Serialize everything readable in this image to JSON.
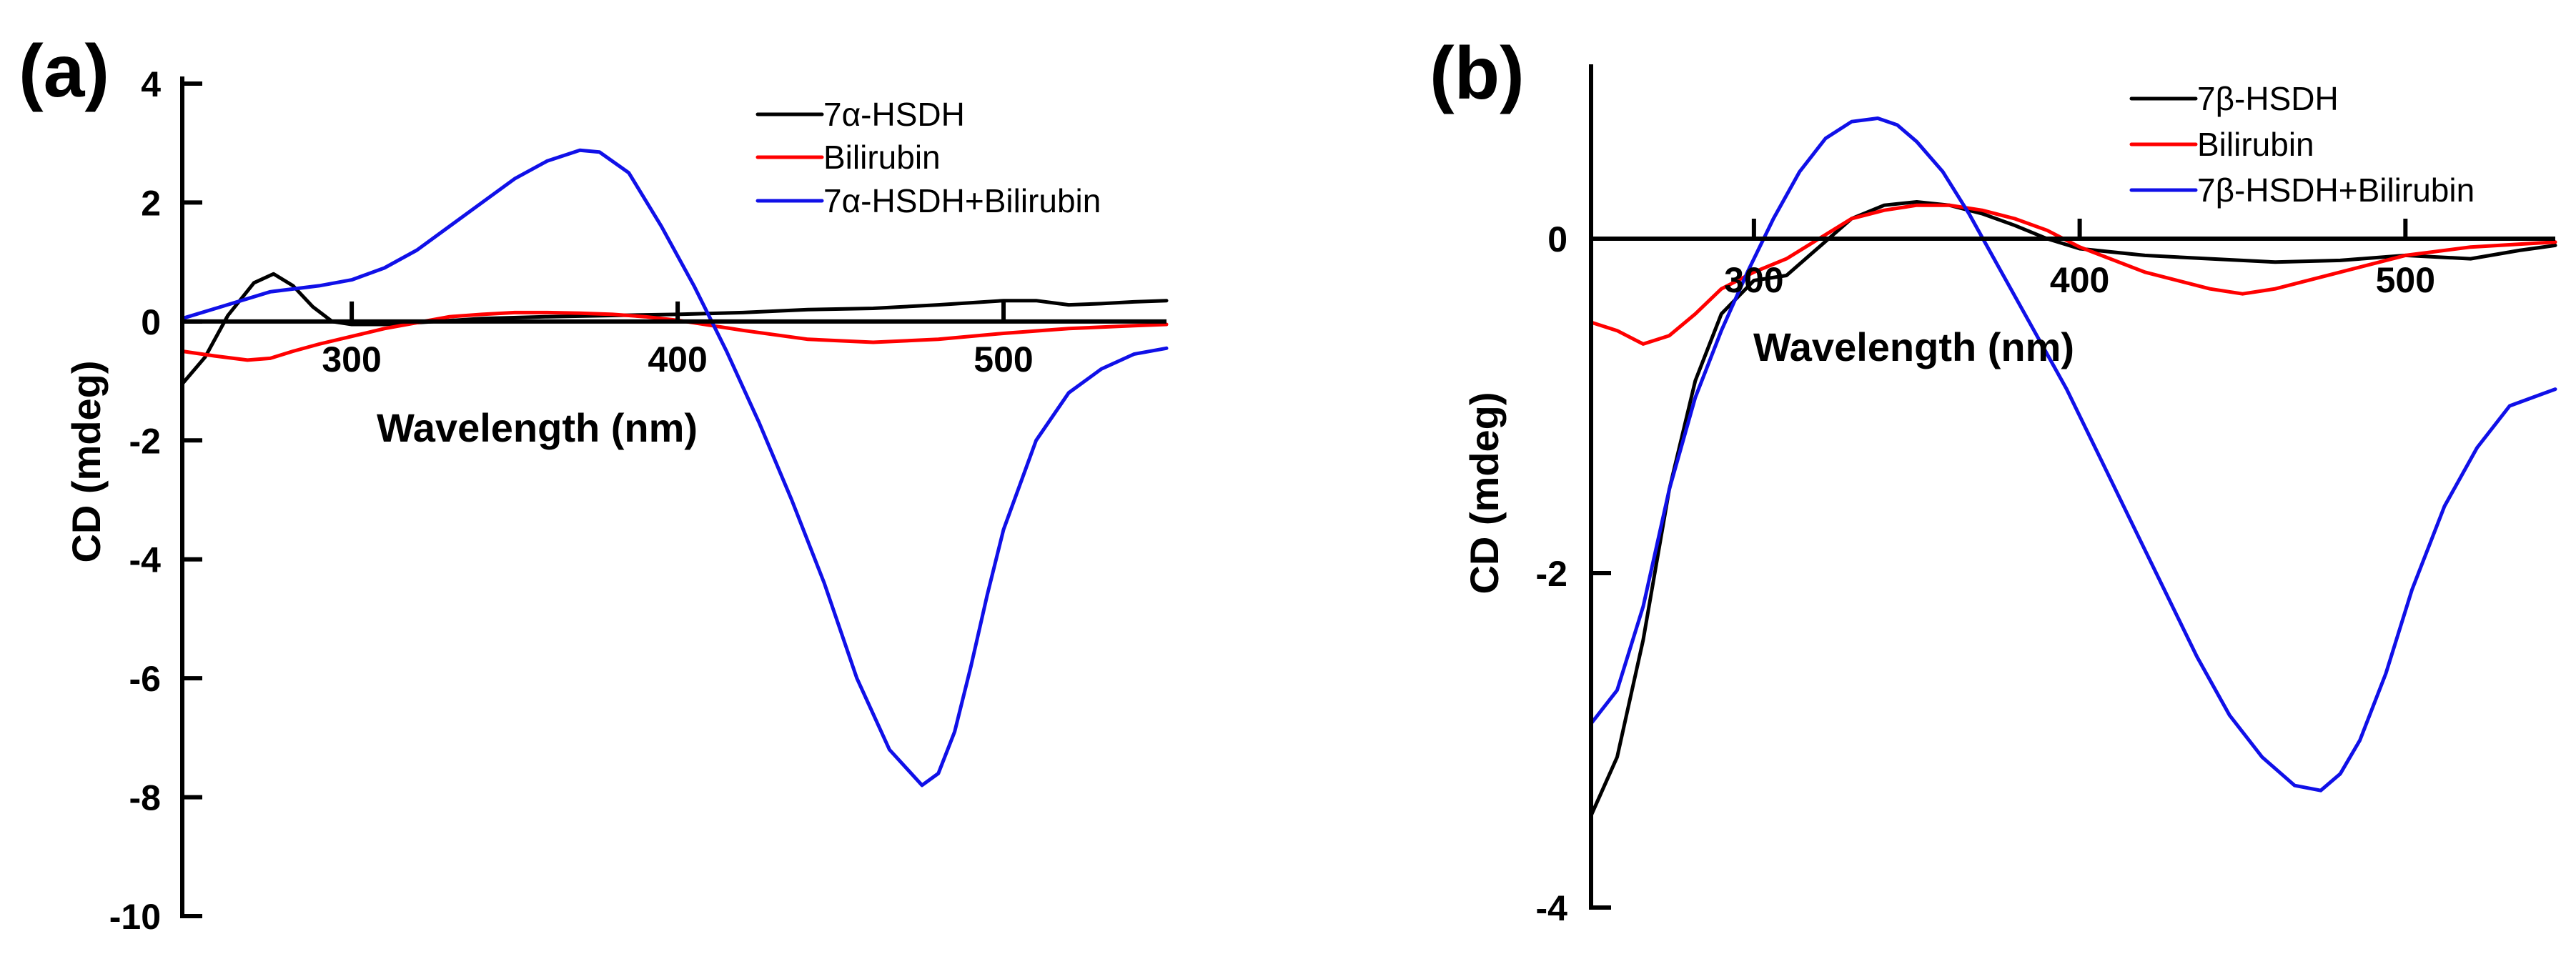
{
  "colors": {
    "black": "#000000",
    "red": "#ff0000",
    "blue": "#1010e8"
  },
  "chart_data": [
    {
      "type": "line",
      "panel_label": "(a)",
      "title": "",
      "xlabel": "Wavelength (nm)",
      "ylabel": "CD (mdeg)",
      "xlim": [
        248,
        550
      ],
      "ylim": [
        -10,
        4
      ],
      "xticks": [
        300,
        400,
        500
      ],
      "xtick_labels": [
        "300",
        "400",
        "500"
      ],
      "yticks": [
        4,
        2,
        0,
        -2,
        -4,
        -6,
        -8,
        -10
      ],
      "ytick_labels": [
        "4",
        "2",
        "0",
        "-2",
        "-4",
        "-6",
        "-8",
        "-10"
      ],
      "legend_position": "top-right",
      "series": [
        {
          "name": "7α-HSDH",
          "color": "#000000",
          "x": [
            248,
            255,
            262,
            270,
            276,
            282,
            288,
            294,
            300,
            310,
            320,
            340,
            360,
            380,
            400,
            420,
            440,
            460,
            480,
            500,
            510,
            520,
            530,
            540,
            550
          ],
          "y": [
            -1.05,
            -0.6,
            0.1,
            0.65,
            0.8,
            0.6,
            0.25,
            0.0,
            -0.05,
            -0.05,
            -0.02,
            0.05,
            0.08,
            0.1,
            0.12,
            0.15,
            0.2,
            0.22,
            0.28,
            0.35,
            0.35,
            0.28,
            0.3,
            0.33,
            0.35
          ]
        },
        {
          "name": "Bilirubin",
          "color": "#ff0000",
          "x": [
            248,
            258,
            268,
            275,
            282,
            290,
            300,
            310,
            320,
            330,
            340,
            350,
            360,
            370,
            380,
            390,
            400,
            420,
            440,
            460,
            480,
            500,
            520,
            540,
            550
          ],
          "y": [
            -0.5,
            -0.58,
            -0.65,
            -0.62,
            -0.5,
            -0.38,
            -0.25,
            -0.12,
            -0.02,
            0.08,
            0.12,
            0.15,
            0.15,
            0.14,
            0.12,
            0.08,
            0.02,
            -0.15,
            -0.3,
            -0.35,
            -0.3,
            -0.2,
            -0.12,
            -0.07,
            -0.05
          ]
        },
        {
          "name": "7α-HSDH+Bilirubin",
          "color": "#1010e8",
          "x": [
            248,
            260,
            275,
            290,
            300,
            310,
            320,
            330,
            340,
            350,
            360,
            370,
            376,
            385,
            395,
            405,
            415,
            425,
            435,
            445,
            455,
            465,
            475,
            480,
            485,
            490,
            495,
            500,
            510,
            520,
            530,
            540,
            550
          ],
          "y": [
            0.05,
            0.25,
            0.5,
            0.6,
            0.7,
            0.9,
            1.2,
            1.6,
            2.0,
            2.4,
            2.7,
            2.88,
            2.85,
            2.5,
            1.6,
            0.6,
            -0.5,
            -1.7,
            -3.0,
            -4.4,
            -6.0,
            -7.2,
            -7.8,
            -7.6,
            -6.9,
            -5.8,
            -4.6,
            -3.5,
            -2.0,
            -1.2,
            -0.8,
            -0.55,
            -0.45
          ]
        }
      ]
    },
    {
      "type": "line",
      "panel_label": "(b)",
      "title": "",
      "xlabel": "Wavelength (nm)",
      "ylabel": "CD (mdeg)",
      "xlim": [
        250,
        546
      ],
      "ylim": [
        -4,
        1
      ],
      "xticks": [
        300,
        400,
        500
      ],
      "xtick_labels": [
        "300",
        "400",
        "500"
      ],
      "yticks": [
        0,
        -2,
        -4
      ],
      "ytick_labels": [
        "0",
        "-2",
        "-4"
      ],
      "legend_position": "top-right",
      "series": [
        {
          "name": "7β-HSDH",
          "color": "#000000",
          "x": [
            250,
            258,
            266,
            274,
            282,
            290,
            300,
            310,
            320,
            330,
            340,
            350,
            360,
            370,
            380,
            390,
            400,
            420,
            440,
            460,
            480,
            500,
            520,
            535,
            546
          ],
          "y": [
            -3.45,
            -3.1,
            -2.4,
            -1.5,
            -0.85,
            -0.45,
            -0.25,
            -0.22,
            -0.05,
            0.12,
            0.2,
            0.22,
            0.2,
            0.15,
            0.08,
            0.0,
            -0.06,
            -0.1,
            -0.12,
            -0.14,
            -0.13,
            -0.1,
            -0.12,
            -0.07,
            -0.04
          ]
        },
        {
          "name": "Bilirubin",
          "color": "#ff0000",
          "x": [
            250,
            258,
            266,
            274,
            282,
            290,
            300,
            310,
            320,
            330,
            340,
            350,
            360,
            370,
            380,
            390,
            400,
            420,
            440,
            450,
            460,
            480,
            500,
            520,
            546
          ],
          "y": [
            -0.5,
            -0.55,
            -0.63,
            -0.58,
            -0.45,
            -0.3,
            -0.2,
            -0.12,
            0.0,
            0.12,
            0.17,
            0.2,
            0.2,
            0.17,
            0.12,
            0.05,
            -0.05,
            -0.2,
            -0.3,
            -0.33,
            -0.3,
            -0.2,
            -0.1,
            -0.05,
            -0.02
          ]
        },
        {
          "name": "7β-HSDH+Bilirubin",
          "color": "#1010e8",
          "x": [
            250,
            258,
            266,
            274,
            282,
            290,
            298,
            306,
            314,
            322,
            330,
            338,
            344,
            350,
            358,
            366,
            376,
            386,
            396,
            406,
            416,
            426,
            436,
            446,
            456,
            466,
            474,
            480,
            486,
            494,
            502,
            512,
            522,
            532,
            546
          ],
          "y": [
            -2.9,
            -2.7,
            -2.2,
            -1.5,
            -0.95,
            -0.55,
            -0.2,
            0.12,
            0.4,
            0.6,
            0.7,
            0.72,
            0.68,
            0.58,
            0.4,
            0.15,
            -0.2,
            -0.55,
            -0.9,
            -1.3,
            -1.7,
            -2.1,
            -2.5,
            -2.85,
            -3.1,
            -3.27,
            -3.3,
            -3.2,
            -3.0,
            -2.6,
            -2.1,
            -1.6,
            -1.25,
            -1.0,
            -0.9
          ]
        }
      ]
    }
  ]
}
